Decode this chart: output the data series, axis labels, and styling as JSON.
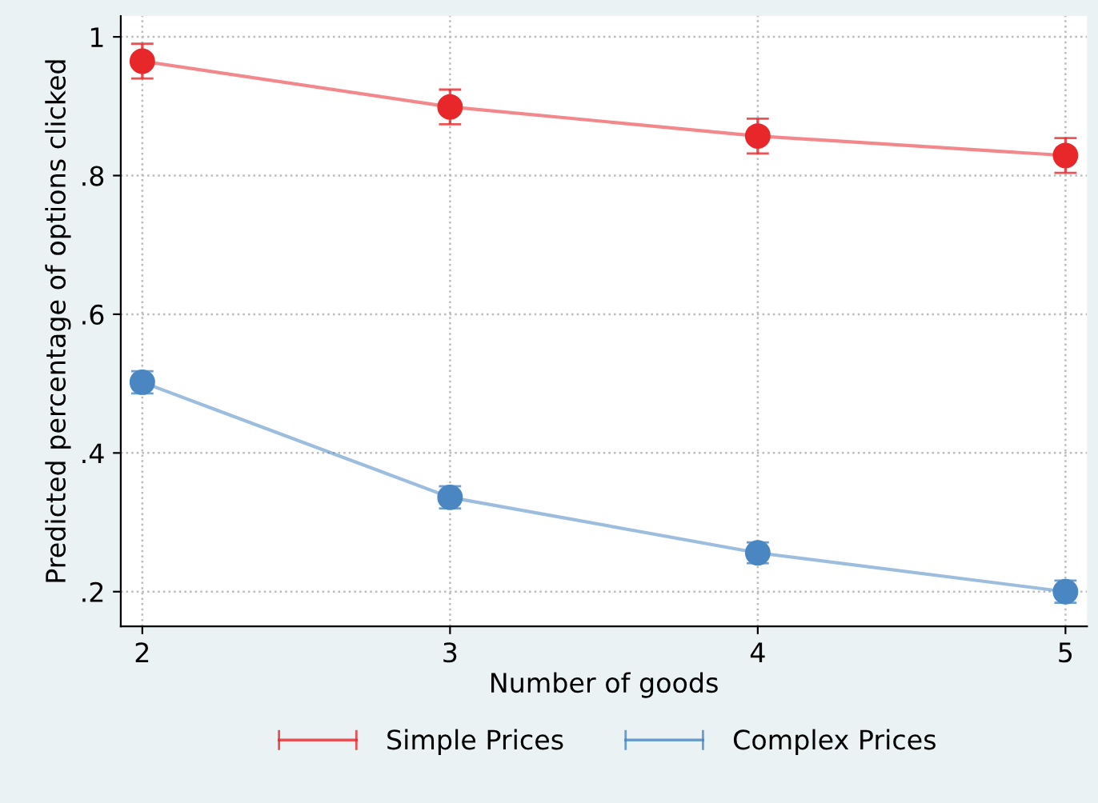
{
  "chart_data": {
    "type": "line",
    "xlabel": "Number of goods",
    "ylabel": "Predicted percentage of options clicked",
    "x": [
      2,
      3,
      4,
      5
    ],
    "series": [
      {
        "name": "Simple Prices",
        "color": "#e8272b",
        "values": [
          0.965,
          0.899,
          0.857,
          0.829
        ],
        "errors": [
          0.025,
          0.025,
          0.025,
          0.025
        ]
      },
      {
        "name": "Complex Prices",
        "color": "#4a86c2",
        "values": [
          0.502,
          0.336,
          0.256,
          0.2
        ],
        "errors": [
          0.016,
          0.016,
          0.015,
          0.016
        ]
      }
    ],
    "xlim": [
      1.93,
      5.07
    ],
    "xticks": [
      2,
      3,
      4,
      5
    ],
    "ylim": [
      0.15,
      1.03
    ],
    "yticks": [
      {
        "value": 0.2,
        "label": ".2"
      },
      {
        "value": 0.4,
        "label": ".4"
      },
      {
        "value": 0.6,
        "label": ".6"
      },
      {
        "value": 0.8,
        "label": ".8"
      },
      1
    ],
    "grid": true,
    "legend": "bottom",
    "marker": "circle",
    "line_style": "solid"
  }
}
